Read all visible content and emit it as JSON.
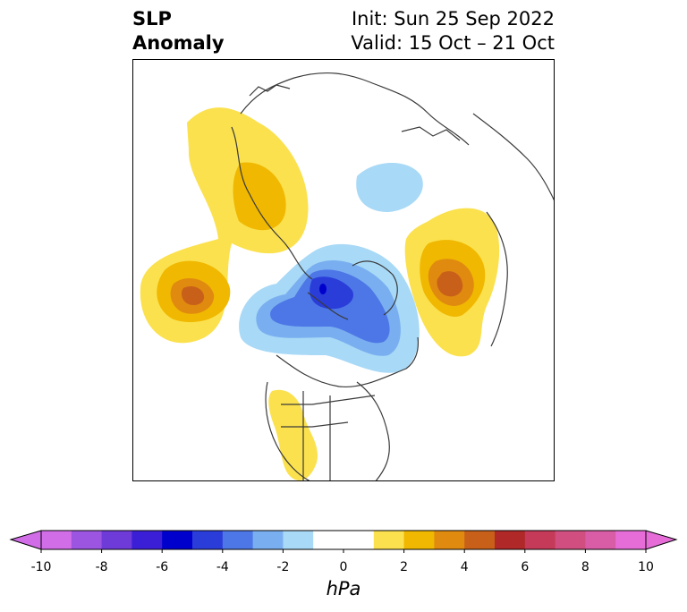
{
  "title": {
    "variable_line1": "SLP",
    "variable_line2": "Anomaly",
    "init": "Init: Sun 25 Sep 2022",
    "valid": "Valid: 15 Oct – 21 Oct"
  },
  "colorbar": {
    "unit": "hPa",
    "ticks": [
      "-10",
      "-8",
      "-6",
      "-4",
      "-2",
      "0",
      "2",
      "4",
      "6",
      "8",
      "10"
    ],
    "range": [
      -10,
      10
    ],
    "step": 1,
    "extend": "both",
    "colors": [
      "#d26de8",
      "#9c55e0",
      "#6e3ad8",
      "#3b1fd6",
      "#0000cc",
      "#2a3dd9",
      "#4d77e6",
      "#79aff0",
      "#a8d9f6",
      "#ffffff",
      "#ffffff",
      "#fbe14e",
      "#f0b800",
      "#e08a10",
      "#c8601a",
      "#b02828",
      "#c43a58",
      "#d04f80",
      "#d95ca6",
      "#e66dd8"
    ],
    "under_color": "#d26de8",
    "over_color": "#e66dd8"
  },
  "map": {
    "projection": "polar-stereographic",
    "shading_colors": {
      "neg_light": "#a8d9f6",
      "neg_mid": "#79aff0",
      "neg_strong": "#4d77e6",
      "neg_deep": "#2a3dd9",
      "neg_core": "#0000cc",
      "pos_light": "#fbe14e",
      "pos_mid": "#f0b800",
      "pos_strong": "#e08a10",
      "pos_deep": "#c8601a"
    }
  }
}
